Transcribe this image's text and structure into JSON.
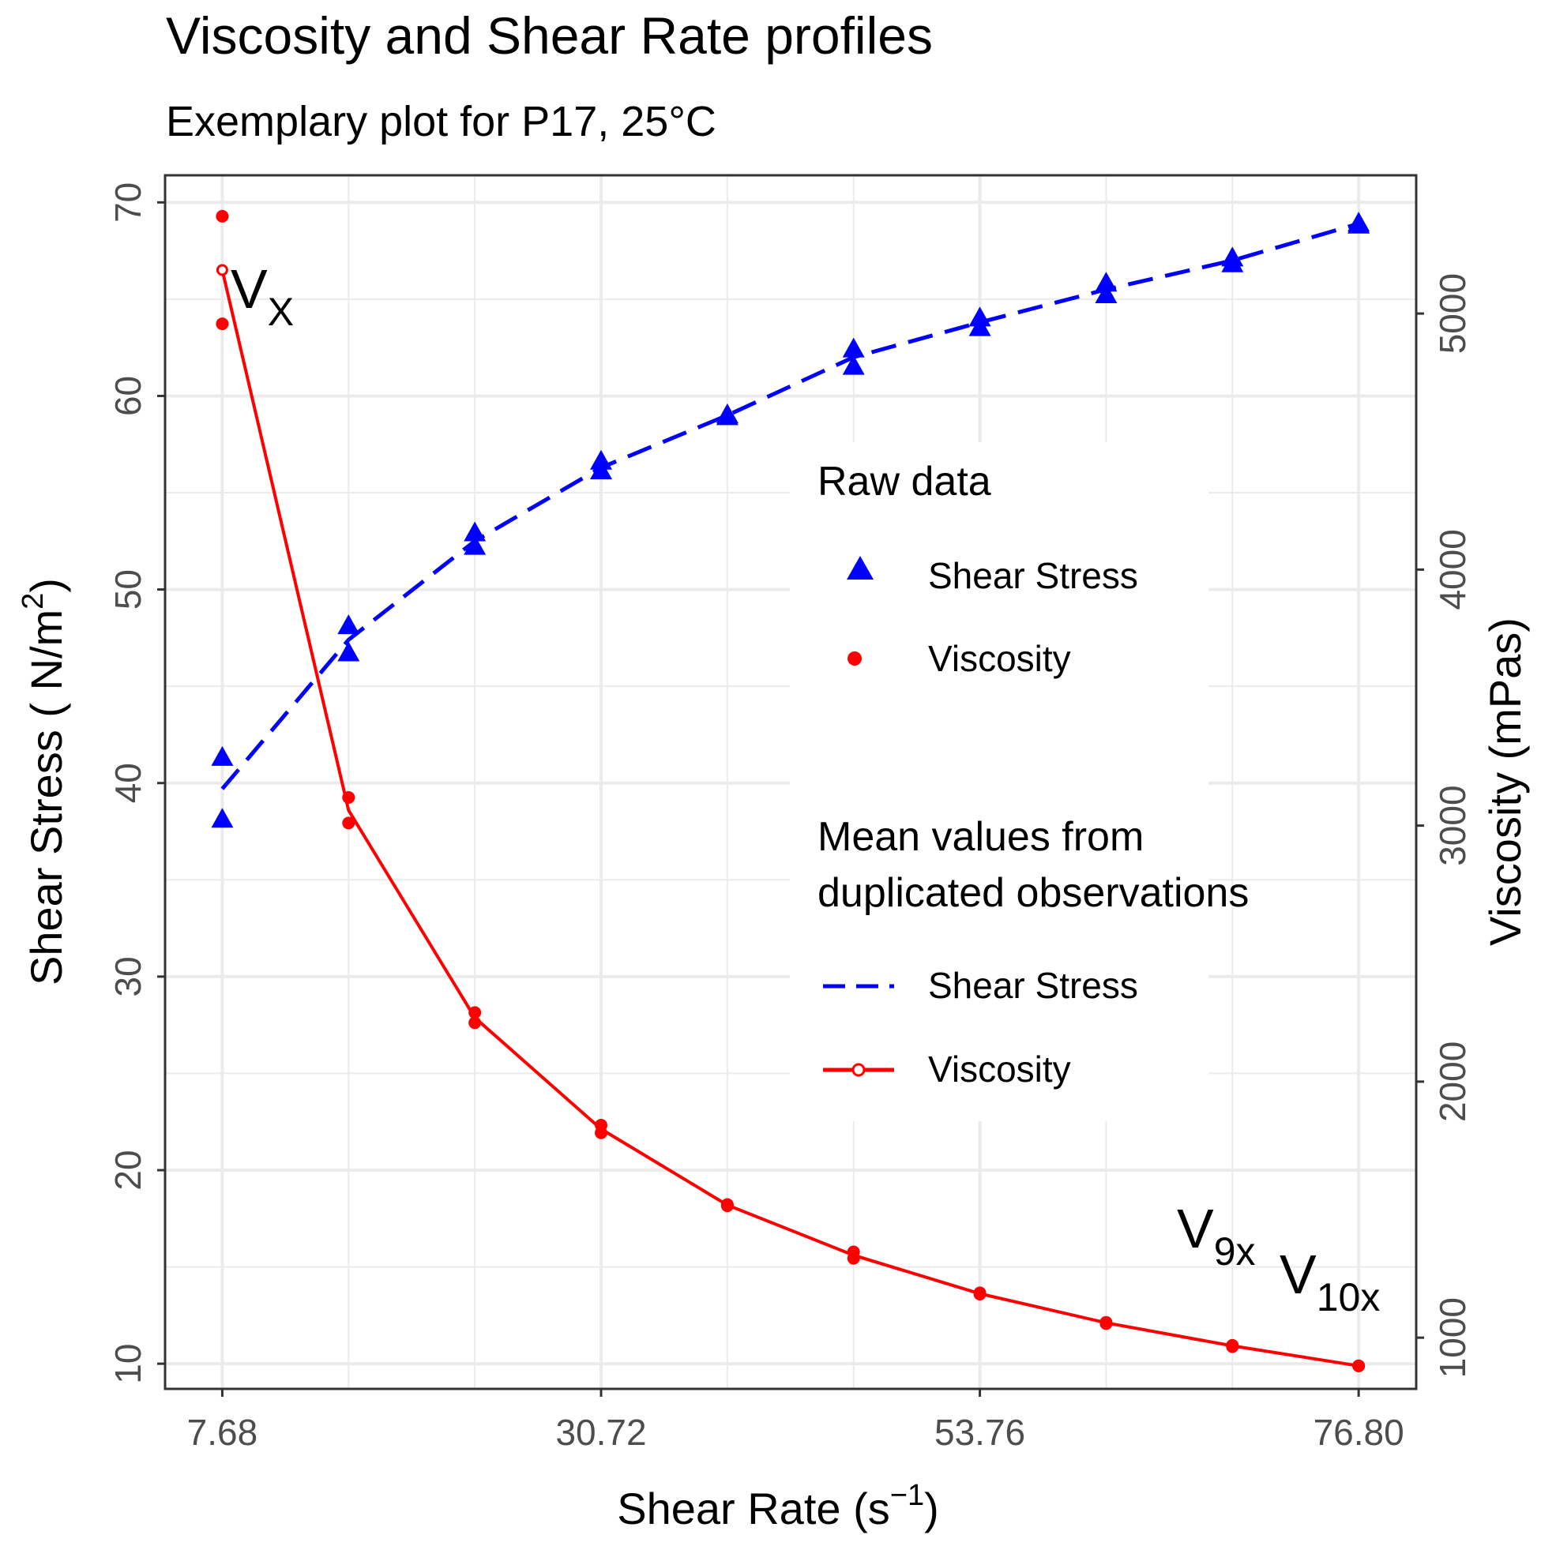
{
  "chart_data": {
    "type": "line",
    "title": "Viscosity and Shear Rate profiles",
    "subtitle": "Exemplary plot for P17, 25°C",
    "xlabel": "Shear Rate (s",
    "xlabel_sup": "−1",
    "xlabel_end": ")",
    "ylabel": "Shear Stress ( N/m",
    "ylabel_sup": "2",
    "ylabel_end": ")",
    "y2label": "Viscosity (mPas)",
    "xlim": [
      4.2,
      80.3
    ],
    "ylim": [
      8.7,
      71.4
    ],
    "y2lim": [
      800,
      5540
    ],
    "grid": true,
    "x_ticks": [
      7.68,
      30.72,
      53.76,
      76.8
    ],
    "x_tick_labels": [
      "7.68",
      "30.72",
      "53.76",
      "76.80"
    ],
    "x_minor": [
      15.36,
      23.04,
      38.4,
      46.08,
      61.44,
      69.12
    ],
    "y_ticks": [
      10,
      20,
      30,
      40,
      50,
      60,
      70
    ],
    "y_tick_labels": [
      "10",
      "20",
      "30",
      "40",
      "50",
      "60",
      "70"
    ],
    "y2_ticks": [
      1000,
      2000,
      3000,
      4000,
      5000
    ],
    "y2_tick_labels": [
      "1000",
      "2000",
      "3000",
      "4000",
      "5000"
    ],
    "shear_rate": [
      7.68,
      15.36,
      23.04,
      30.72,
      38.4,
      46.08,
      53.76,
      61.44,
      69.12,
      76.8
    ],
    "raw": {
      "shear_stress": [
        [
          7.68,
          41.3
        ],
        [
          7.68,
          38.1
        ],
        [
          15.36,
          48.1
        ],
        [
          15.36,
          46.7
        ],
        [
          23.04,
          52.9
        ],
        [
          23.04,
          52.2
        ],
        [
          30.72,
          56.6
        ],
        [
          30.72,
          56.1
        ],
        [
          38.4,
          59.0
        ],
        [
          38.4,
          58.9
        ],
        [
          46.08,
          62.4
        ],
        [
          46.08,
          61.5
        ],
        [
          53.76,
          64.0
        ],
        [
          53.76,
          63.5
        ],
        [
          61.44,
          65.8
        ],
        [
          61.44,
          65.2
        ],
        [
          69.12,
          67.1
        ],
        [
          69.12,
          66.8
        ],
        [
          76.8,
          68.9
        ],
        [
          76.8,
          68.8
        ]
      ],
      "viscosity": [
        [
          7.68,
          5380
        ],
        [
          7.68,
          4960
        ],
        [
          15.36,
          3110
        ],
        [
          15.36,
          3010
        ],
        [
          23.04,
          2270
        ],
        [
          23.04,
          2230
        ],
        [
          30.72,
          1830
        ],
        [
          30.72,
          1800
        ],
        [
          38.4,
          1520
        ],
        [
          38.4,
          1515
        ],
        [
          46.08,
          1335
        ],
        [
          46.08,
          1310
        ],
        [
          53.76,
          1175
        ],
        [
          53.76,
          1170
        ],
        [
          61.44,
          1060
        ],
        [
          61.44,
          1055
        ],
        [
          69.12,
          970
        ],
        [
          69.12,
          965
        ],
        [
          76.8,
          890
        ],
        [
          76.8,
          890
        ]
      ]
    },
    "mean": {
      "shear_stress": [
        39.7,
        47.4,
        52.5,
        56.3,
        59.0,
        62.0,
        63.8,
        65.5,
        67.0,
        68.9
      ],
      "viscosity": [
        5170,
        3060,
        2250,
        1815,
        1518,
        1322,
        1172,
        1058,
        968,
        890
      ]
    },
    "legend": {
      "position": "right",
      "raw_title": "Raw data",
      "raw_items": [
        "Shear Stress",
        "Viscosity"
      ],
      "mean_title_line1": "Mean values from",
      "mean_title_line2": "duplicated observations",
      "mean_items": [
        "Shear Stress",
        "Viscosity"
      ]
    },
    "annotations": [
      {
        "label": "V",
        "sub": "X"
      },
      {
        "label": "V",
        "sub": "9x"
      },
      {
        "label": "V",
        "sub": "10x"
      }
    ],
    "colors": {
      "stress": "#0000ff",
      "viscosity": "#ff0000",
      "grid": "#ebebeb",
      "axis_text": "#4d4d4d",
      "border": "#333333"
    }
  }
}
